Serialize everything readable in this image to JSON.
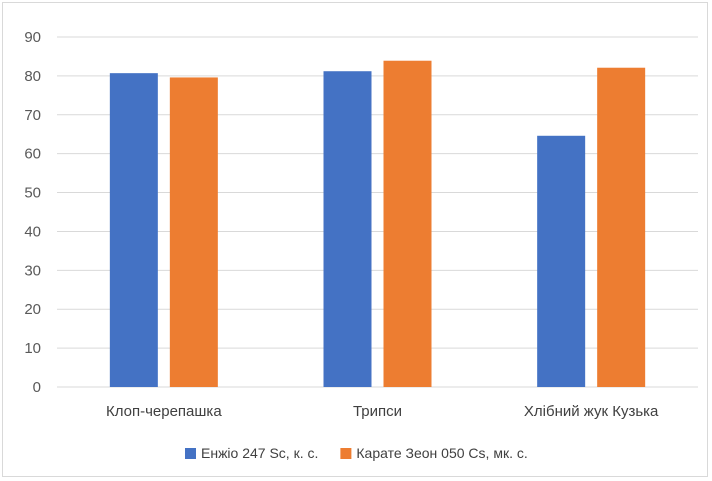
{
  "chart_data": {
    "type": "bar",
    "categories": [
      "Клоп-черепашка",
      "Трипси",
      "Хлібний жук Кузька"
    ],
    "series": [
      {
        "name": "Енжіо 247 Sc, к. с.",
        "color": "#4472C4",
        "values": [
          80.7,
          81.2,
          64.6
        ]
      },
      {
        "name": "Карате Зеон 050 Cs, мк. с.",
        "color": "#ED7D31",
        "values": [
          79.6,
          83.9,
          82.1
        ]
      }
    ],
    "y_ticks": [
      "0",
      "10",
      "20",
      "30",
      "40",
      "50",
      "60",
      "70",
      "80",
      "90"
    ],
    "ylim": [
      0,
      90
    ],
    "grid": true,
    "legend_position": "bottom",
    "gridline_color": "#d9d9d9"
  }
}
